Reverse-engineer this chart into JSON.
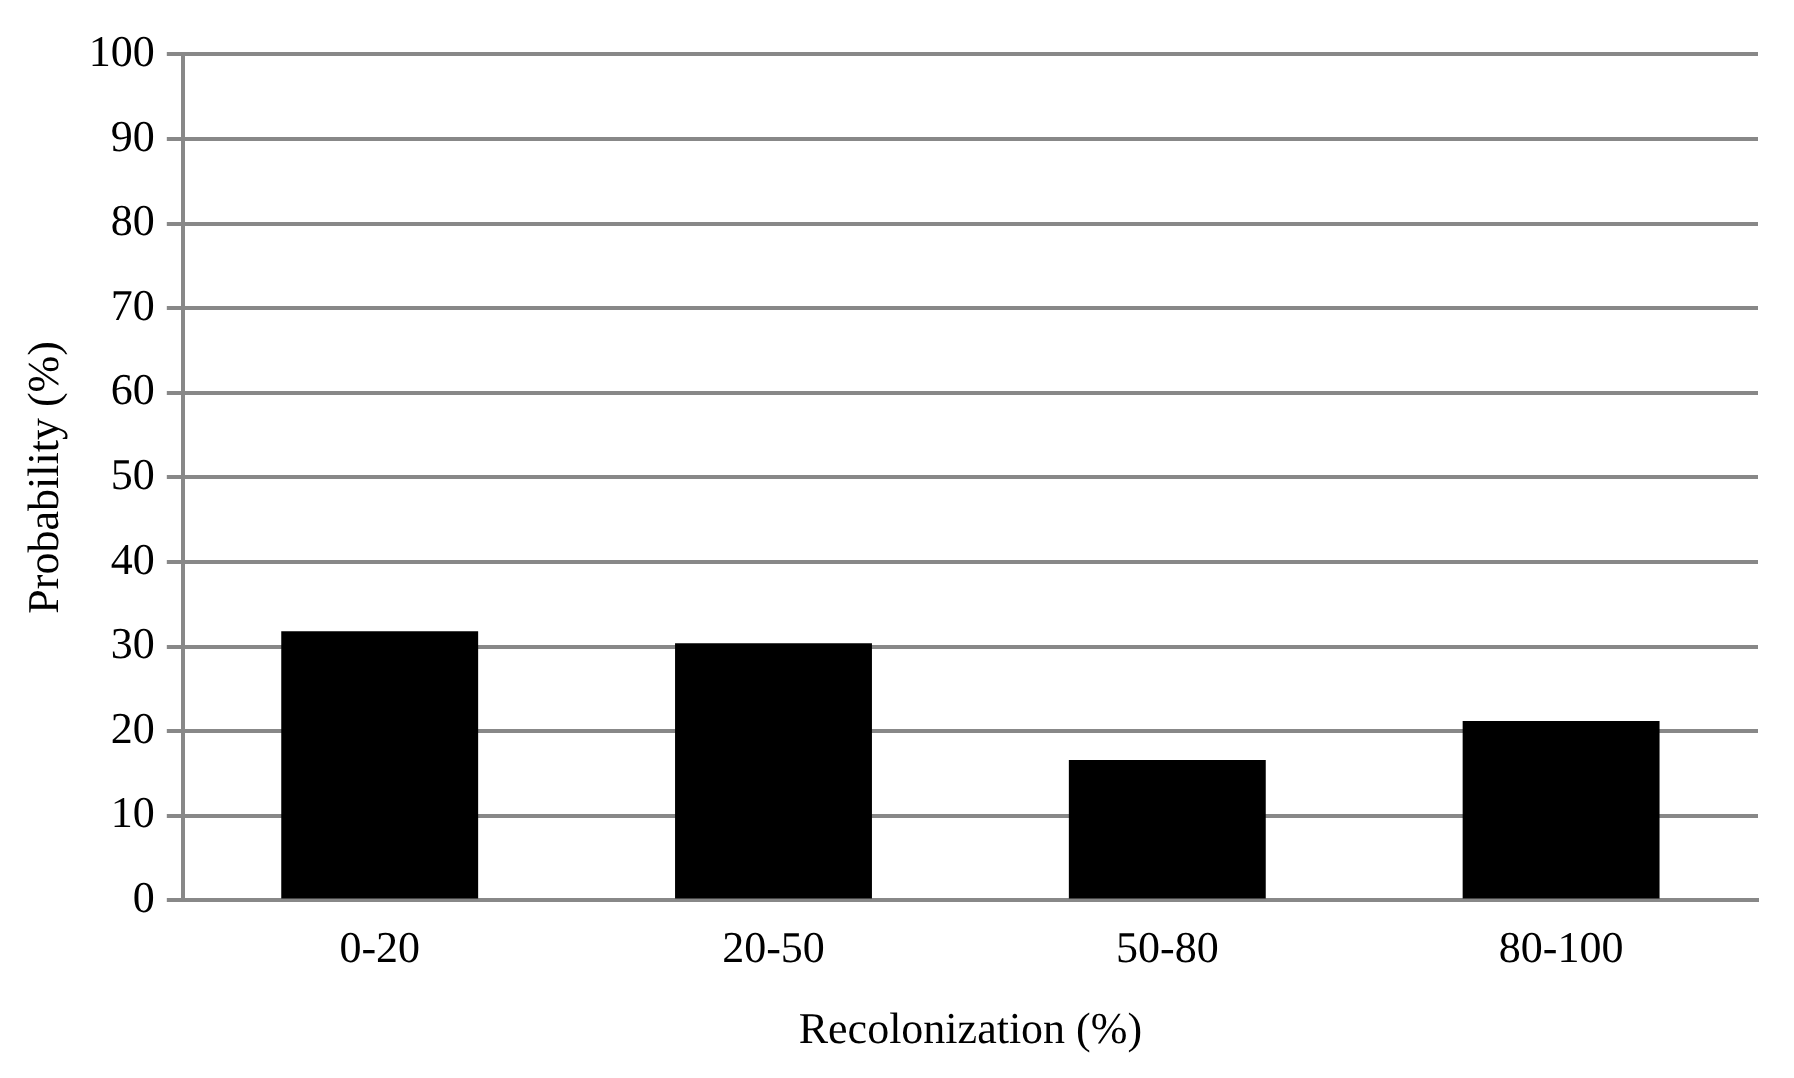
{
  "chart_data": {
    "type": "bar",
    "xlabel": "Recolonization (%)",
    "ylabel": "Probability (%)",
    "categories": [
      "0-20",
      "20-50",
      "50-80",
      "80-100"
    ],
    "values": [
      31.8,
      30.4,
      16.6,
      21.2
    ],
    "color": "#000000",
    "ylim": [
      0,
      100
    ],
    "yticks": [
      0,
      10,
      20,
      30,
      40,
      50,
      60,
      70,
      80,
      90,
      100
    ],
    "grid": "y",
    "legend": false
  }
}
